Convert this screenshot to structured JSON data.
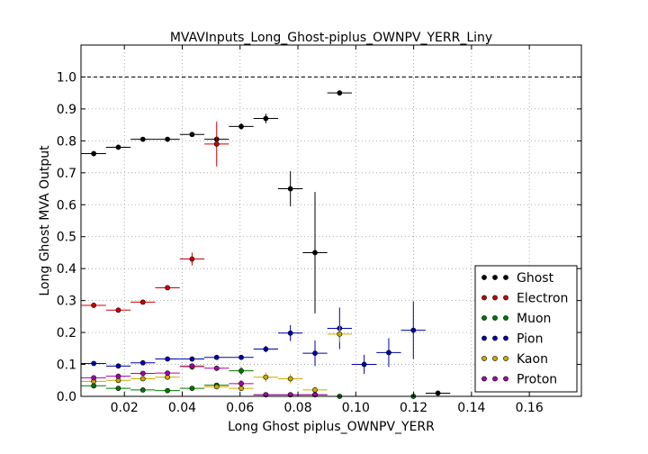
{
  "chart_data": {
    "type": "scatter",
    "title": "MVAVInputs_Long_Ghost-piplus_OWNPV_YERR_Liny",
    "xlabel": "Long Ghost piplus_OWNPV_YERR",
    "ylabel": "Long Ghost MVA Output",
    "xlim": [
      0.005,
      0.178
    ],
    "ylim": [
      0.0,
      1.1
    ],
    "xticks": [
      "0.02",
      "0.04",
      "0.06",
      "0.08",
      "0.10",
      "0.12",
      "0.14",
      "0.16"
    ],
    "xtick_values": [
      0.02,
      0.04,
      0.06,
      0.08,
      0.1,
      0.12,
      0.14,
      0.16
    ],
    "yticks": [
      "0.0",
      "0.1",
      "0.2",
      "0.3",
      "0.4",
      "0.5",
      "0.6",
      "0.7",
      "0.8",
      "0.9",
      "1.0"
    ],
    "ytick_values": [
      0.0,
      0.1,
      0.2,
      0.3,
      0.4,
      0.5,
      0.6,
      0.7,
      0.8,
      0.9,
      1.0
    ],
    "grid": true,
    "reference_line": 1.0,
    "legend_position": "lower-right",
    "series": [
      {
        "name": "Ghost",
        "color": "#000000",
        "x": [
          0.0094,
          0.0179,
          0.0264,
          0.0349,
          0.0434,
          0.0519,
          0.0604,
          0.0689,
          0.0774,
          0.0859,
          0.0944,
          0.1284
        ],
        "y": [
          0.76,
          0.78,
          0.805,
          0.805,
          0.82,
          0.805,
          0.845,
          0.87,
          0.65,
          0.45,
          0.95,
          0.01
        ],
        "yerr": [
          0.005,
          0.005,
          0.005,
          0.005,
          0.005,
          0.01,
          0.01,
          0.015,
          0.055,
          0.19,
          0.008,
          0.004
        ]
      },
      {
        "name": "Electron",
        "color": "#cc0000",
        "x": [
          0.0094,
          0.0179,
          0.0264,
          0.0349,
          0.0434,
          0.0519
        ],
        "y": [
          0.285,
          0.27,
          0.295,
          0.34,
          0.43,
          0.79
        ],
        "yerr": [
          0.005,
          0.005,
          0.005,
          0.006,
          0.02,
          0.07
        ]
      },
      {
        "name": "Muon",
        "color": "#007700",
        "x": [
          0.0094,
          0.0179,
          0.0264,
          0.0349,
          0.0434,
          0.0519,
          0.0604,
          0.0689,
          0.0774,
          0.0859,
          0.0944,
          0.1199
        ],
        "y": [
          0.033,
          0.025,
          0.02,
          0.018,
          0.025,
          0.035,
          0.08,
          0.005,
          0.005,
          0.005,
          0.0,
          0.0
        ],
        "yerr": [
          0.003,
          0.003,
          0.003,
          0.003,
          0.004,
          0.006,
          0.012,
          0.004,
          0.004,
          0.004,
          0.003,
          0.003
        ]
      },
      {
        "name": "Pion",
        "color": "#0000aa",
        "x": [
          0.0094,
          0.0179,
          0.0264,
          0.0349,
          0.0434,
          0.0519,
          0.0604,
          0.0689,
          0.0774,
          0.0859,
          0.0944,
          0.1029,
          0.1114,
          0.1199
        ],
        "y": [
          0.103,
          0.095,
          0.105,
          0.117,
          0.117,
          0.122,
          0.122,
          0.148,
          0.198,
          0.135,
          0.213,
          0.1,
          0.137,
          0.207
        ],
        "yerr": [
          0.004,
          0.004,
          0.004,
          0.004,
          0.004,
          0.005,
          0.006,
          0.01,
          0.025,
          0.04,
          0.065,
          0.03,
          0.045,
          0.09
        ]
      },
      {
        "name": "Kaon",
        "color": "#ccaa00",
        "x": [
          0.0094,
          0.0179,
          0.0264,
          0.0349,
          0.0434,
          0.0519,
          0.0604,
          0.0689,
          0.0774,
          0.0859,
          0.0944
        ],
        "y": [
          0.047,
          0.05,
          0.055,
          0.06,
          0.092,
          0.03,
          0.025,
          0.06,
          0.055,
          0.02,
          0.195
        ],
        "yerr": [
          0.004,
          0.004,
          0.004,
          0.005,
          0.01,
          0.006,
          0.008,
          0.015,
          0.015,
          0.01,
          0.025
        ]
      },
      {
        "name": "Proton",
        "color": "#aa00aa",
        "x": [
          0.0094,
          0.0179,
          0.0264,
          0.0349,
          0.0434,
          0.0519,
          0.0604,
          0.0689,
          0.0774,
          0.0859
        ],
        "y": [
          0.058,
          0.063,
          0.072,
          0.073,
          0.095,
          0.088,
          0.04,
          0.005,
          0.005,
          0.005
        ],
        "yerr": [
          0.004,
          0.004,
          0.005,
          0.005,
          0.008,
          0.008,
          0.01,
          0.004,
          0.004,
          0.004
        ]
      }
    ],
    "xerr": 0.00425
  }
}
